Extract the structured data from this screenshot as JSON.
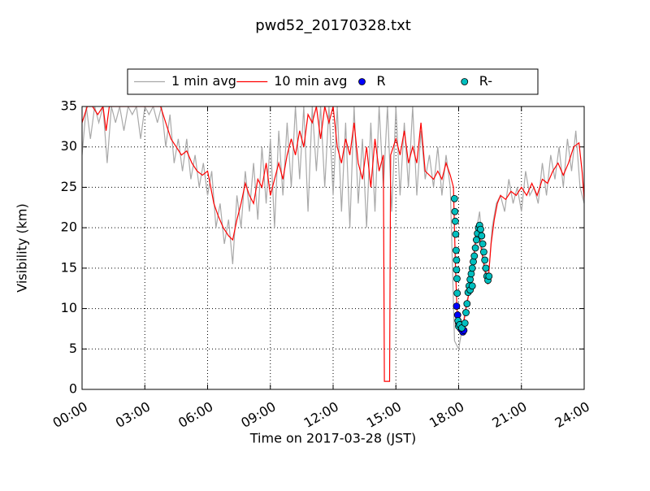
{
  "chart_data": {
    "type": "line",
    "title": "pwd52_20170328.txt",
    "xlabel": "Time on 2017-03-28 (JST)",
    "ylabel": "Visibility (km)",
    "xlim": [
      0,
      24
    ],
    "ylim": [
      0,
      35
    ],
    "xticks": [
      {
        "value": 0,
        "label": "00:00"
      },
      {
        "value": 3,
        "label": "03:00"
      },
      {
        "value": 6,
        "label": "06:00"
      },
      {
        "value": 9,
        "label": "09:00"
      },
      {
        "value": 12,
        "label": "12:00"
      },
      {
        "value": 15,
        "label": "15:00"
      },
      {
        "value": 18,
        "label": "18:00"
      },
      {
        "value": 21,
        "label": "21:00"
      },
      {
        "value": 24,
        "label": "24:00"
      }
    ],
    "yticks": [
      0,
      5,
      10,
      15,
      20,
      25,
      30,
      35
    ],
    "grid": true,
    "legend": "above",
    "series": [
      {
        "name": "1 min avg",
        "type": "line",
        "color": "#a9a9a9",
        "x": [
          0,
          0.2,
          0.4,
          0.6,
          0.8,
          1,
          1.2,
          1.4,
          1.6,
          1.8,
          2,
          2.2,
          2.4,
          2.6,
          2.8,
          3,
          3.2,
          3.4,
          3.6,
          3.8,
          4,
          4.2,
          4.4,
          4.6,
          4.8,
          5,
          5.2,
          5.4,
          5.6,
          5.8,
          6,
          6.2,
          6.4,
          6.6,
          6.8,
          7,
          7.2,
          7.4,
          7.6,
          7.8,
          8,
          8.2,
          8.4,
          8.6,
          8.8,
          9,
          9.2,
          9.4,
          9.6,
          9.8,
          10,
          10.2,
          10.4,
          10.6,
          10.8,
          11,
          11.2,
          11.4,
          11.6,
          11.8,
          12,
          12.2,
          12.4,
          12.6,
          12.8,
          13,
          13.2,
          13.4,
          13.6,
          13.8,
          14,
          14.2,
          14.4,
          14.6,
          14.8,
          15,
          15.2,
          15.4,
          15.6,
          15.8,
          16,
          16.2,
          16.4,
          16.6,
          16.8,
          17,
          17.2,
          17.4,
          17.6,
          17.8,
          18,
          18.2,
          18.4,
          18.6,
          18.8,
          19,
          19.2,
          19.4,
          19.6,
          19.8,
          20,
          20.2,
          20.4,
          20.6,
          20.8,
          21,
          21.2,
          21.4,
          21.6,
          21.8,
          22,
          22.2,
          22.4,
          22.6,
          22.8,
          23,
          23.2,
          23.4,
          23.6,
          23.8,
          24
        ],
        "values": [
          29,
          35,
          31,
          35,
          33,
          35,
          28,
          35,
          33,
          35,
          32,
          35,
          34,
          35,
          31,
          35,
          34,
          35,
          33,
          35,
          30,
          34,
          28,
          31,
          27,
          31,
          26,
          29,
          25,
          28,
          24,
          27,
          20,
          23,
          18,
          21,
          15.5,
          24,
          20,
          27,
          22,
          28,
          21,
          30,
          23,
          31,
          20,
          32,
          24,
          33,
          25,
          35,
          26,
          35,
          22,
          35,
          27,
          35,
          25,
          35,
          24,
          35,
          22,
          33,
          20,
          35,
          23,
          31,
          20,
          33,
          22,
          35,
          25,
          35,
          22,
          35,
          24,
          33,
          25,
          35,
          24,
          32,
          26,
          29,
          25,
          30,
          24,
          29,
          25,
          6,
          5,
          8,
          11,
          13,
          19,
          22,
          15,
          13,
          20,
          23,
          24,
          22,
          26,
          23,
          25,
          22,
          27,
          24,
          25,
          23,
          28,
          24,
          29,
          26,
          30,
          25,
          31,
          27,
          32,
          25,
          23
        ]
      },
      {
        "name": "10 min avg",
        "type": "line",
        "color": "#ff0000",
        "x": [
          0,
          0.25,
          0.5,
          0.75,
          1,
          1.15,
          1.3,
          1.75,
          2.25,
          2.75,
          3.25,
          3.75,
          4,
          4.25,
          4.5,
          4.75,
          5,
          5.25,
          5.5,
          5.75,
          6,
          6.15,
          6.3,
          6.5,
          6.75,
          7,
          7.2,
          7.4,
          7.6,
          7.8,
          8,
          8.2,
          8.4,
          8.6,
          8.8,
          9,
          9.2,
          9.4,
          9.6,
          9.8,
          10,
          10.2,
          10.4,
          10.6,
          10.8,
          11,
          11.2,
          11.4,
          11.6,
          11.8,
          12,
          12.2,
          12.4,
          12.6,
          12.8,
          13,
          13.2,
          13.4,
          13.6,
          13.8,
          14,
          14.2,
          14.4,
          14.45,
          14.7,
          14.75,
          15,
          15.2,
          15.4,
          15.6,
          15.8,
          16,
          16.2,
          16.4,
          16.6,
          16.8,
          17,
          17.2,
          17.4,
          17.6,
          17.75,
          17.85,
          17.95,
          18.05,
          18.2,
          18.35,
          18.5,
          18.65,
          18.8,
          18.95,
          19.1,
          19.25,
          19.4,
          19.55,
          19.7,
          19.85,
          20,
          20.25,
          20.5,
          20.75,
          21,
          21.25,
          21.5,
          21.75,
          22,
          22.25,
          22.5,
          22.75,
          23,
          23.25,
          23.5,
          23.75,
          23.9,
          24
        ],
        "values": [
          33,
          35,
          35,
          34,
          35,
          32,
          35,
          35,
          35,
          35,
          35,
          35,
          33,
          31,
          30,
          29,
          29.5,
          28,
          27,
          26.5,
          27,
          25,
          23,
          21.5,
          20,
          19,
          18.5,
          21,
          23,
          25.5,
          24,
          23,
          26,
          25,
          28,
          24,
          26,
          28,
          26,
          29,
          31,
          29,
          32,
          30,
          34,
          33,
          35,
          31,
          35,
          33,
          35,
          30,
          28,
          31,
          29,
          33,
          28,
          26,
          30,
          25,
          31,
          27,
          29,
          1,
          1,
          29,
          31,
          29,
          32,
          28,
          30,
          28,
          33,
          27,
          26.5,
          26,
          27,
          26,
          28,
          26.5,
          25,
          15,
          8,
          7.5,
          7.5,
          10,
          12,
          14,
          18,
          20,
          17,
          15,
          13,
          18,
          21,
          23,
          24,
          23.5,
          24.5,
          24,
          25,
          24,
          25.5,
          24,
          26,
          25.5,
          27,
          28,
          26.5,
          28,
          30,
          30.5,
          27,
          23.5
        ]
      },
      {
        "name": "R",
        "type": "scatter",
        "color": "#0000ff",
        "x": [
          17.9,
          17.95,
          18,
          18.1,
          18.2,
          18.25
        ],
        "values": [
          10.3,
          9.2,
          8.2,
          7.5,
          7.1,
          7.3
        ]
      },
      {
        "name": "R-",
        "type": "scatter",
        "color": "#00bfbf",
        "x": [
          17.8,
          17.82,
          17.84,
          17.86,
          17.88,
          17.9,
          17.9,
          17.92,
          17.93,
          17.97,
          18,
          18.05,
          18.15,
          18.3,
          18.35,
          18.4,
          18.45,
          18.5,
          18.55,
          18.55,
          18.6,
          18.65,
          18.65,
          18.7,
          18.75,
          18.8,
          18.85,
          18.9,
          18.95,
          19,
          19.05,
          19.1,
          19.15,
          19.2,
          19.25,
          19.3,
          19.35,
          19.4,
          19.45
        ],
        "values": [
          23.6,
          22,
          20.8,
          19.2,
          17.2,
          16,
          14.8,
          13.7,
          11.9,
          8.5,
          7.8,
          8,
          7.6,
          8.2,
          9.5,
          10.6,
          12,
          12.8,
          13.6,
          12.3,
          14.3,
          15,
          12.8,
          15.8,
          16.5,
          17.5,
          18.5,
          19.3,
          20,
          20.3,
          19.8,
          19,
          18,
          17,
          16,
          15,
          14,
          13.5,
          14
        ]
      }
    ]
  }
}
